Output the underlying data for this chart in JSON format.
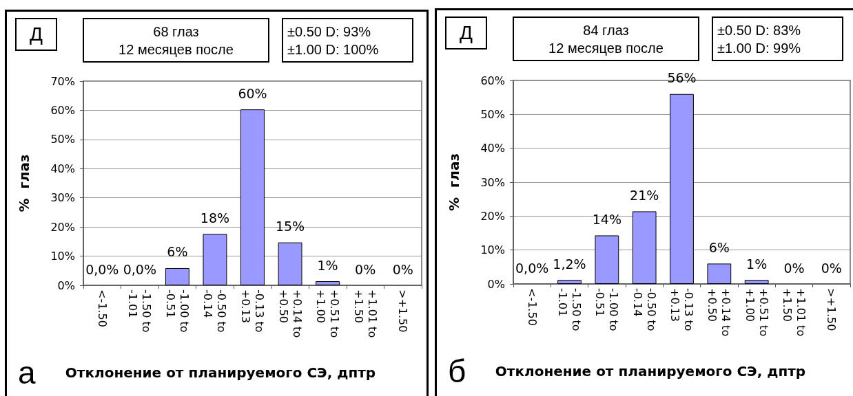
{
  "chart_data": [
    {
      "type": "bar",
      "title": "68 глаз",
      "subtitle": "12 месяцев после",
      "xlabel": "Отклонение от планируемого СЭ, дптр",
      "ylabel": "%  глаз",
      "categories": [
        "<-1.50",
        "-1.50 to -1.01",
        "-1.00 to -0.51",
        "-0.50 to -0.14",
        "-0.13 to +0.13",
        "+0.14 to +0.50",
        "+0.51 to +1.00",
        "+1.01 to +1.50",
        ">+1.50"
      ],
      "values": [
        0,
        0,
        5.9,
        17.6,
        60.3,
        14.7,
        1.4,
        0,
        0
      ],
      "color": "#9999ff",
      "value_labels": [
        "0,0%",
        "0,0%",
        "6%",
        "18%",
        "60%",
        "15%",
        "1%",
        "0%",
        "0%"
      ],
      "ylim": [
        0,
        70
      ],
      "yticks": [
        {
          "value": 0,
          "label": "0%"
        },
        {
          "value": 10,
          "label": "10%"
        },
        {
          "value": 20,
          "label": "20%"
        },
        {
          "value": 30,
          "label": "30%"
        },
        {
          "value": 40,
          "label": "40%"
        },
        {
          "value": 50,
          "label": "50%"
        },
        {
          "value": 60,
          "label": "60%"
        },
        {
          "value": 70,
          "label": "70%"
        }
      ],
      "grid": "y",
      "annotations": [
        "Д",
        "±0.50 D: 93%",
        "±1.00 D: 100%",
        "а"
      ]
    },
    {
      "type": "bar",
      "title": "84 глаз",
      "subtitle": "12 месяцев после",
      "xlabel": "Отклонение от планируемого СЭ, дптр",
      "ylabel": "%  глаз",
      "categories": [
        "<-1.50",
        "-1.50 to -1.01",
        "-1.00 to -0.51",
        "-0.50 to -0.14",
        "-0.13 to +0.13",
        "+0.14 to +0.50",
        "+0.51 to +1.00",
        "+1.01 to +1.50",
        ">+1.50"
      ],
      "values": [
        0,
        1.2,
        14.3,
        21.4,
        56.0,
        6.0,
        1.2,
        0,
        0
      ],
      "color": "#9999ff",
      "value_labels": [
        "0,0%",
        "1,2%",
        "14%",
        "21%",
        "56%",
        "6%",
        "1%",
        "0%",
        "0%"
      ],
      "ylim": [
        0,
        60
      ],
      "yticks": [
        {
          "value": 0,
          "label": "0%"
        },
        {
          "value": 10,
          "label": "10%"
        },
        {
          "value": 20,
          "label": "20%"
        },
        {
          "value": 30,
          "label": "30%"
        },
        {
          "value": 40,
          "label": "40%"
        },
        {
          "value": 50,
          "label": "50%"
        },
        {
          "value": 60,
          "label": "60%"
        }
      ],
      "grid": "y",
      "annotations": [
        "Д",
        "±0.50 D: 83%",
        "±1.00 D: 99%",
        "б"
      ]
    }
  ]
}
